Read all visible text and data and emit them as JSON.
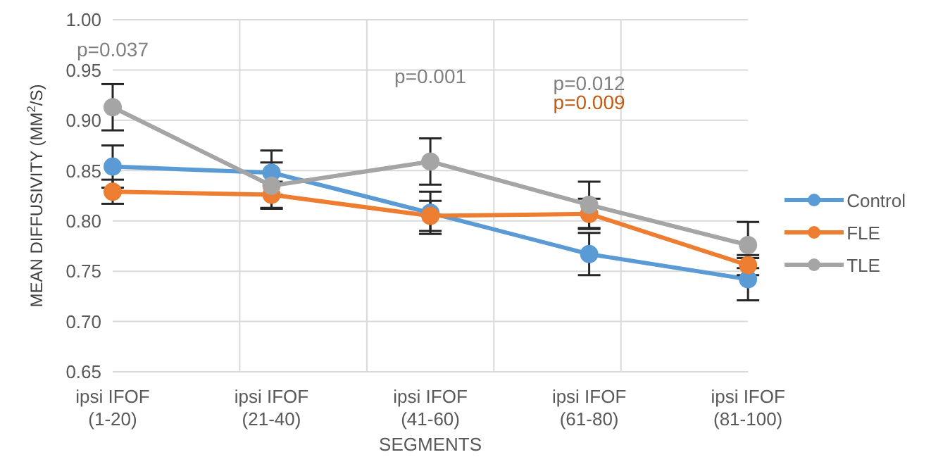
{
  "chart_data": {
    "type": "line",
    "xlabel": "SEGMENTS",
    "ylabel": "MEAN DIFFUSIVITY (MM$^{2}$/S)",
    "categories": [
      "ipsi IFOF (1-20)",
      "ipsi IFOF (21-40)",
      "ipsi IFOF (41-60)",
      "ipsi IFOF (61-80)",
      "ipsi IFOF (81-100)"
    ],
    "series": [
      {
        "name": "Control",
        "color": "#5b9bd5",
        "values": [
          0.854,
          0.848,
          0.808,
          0.767,
          0.742
        ],
        "errors": [
          0.021,
          0.022,
          0.021,
          0.021,
          0.021
        ]
      },
      {
        "name": "FLE",
        "color": "#ed7d31",
        "values": [
          0.829,
          0.826,
          0.805,
          0.807,
          0.756
        ],
        "errors": [
          0.012,
          0.013,
          0.015,
          0.015,
          0.01
        ]
      },
      {
        "name": "TLE",
        "color": "#a5a5a5",
        "values": [
          0.913,
          0.835,
          0.859,
          0.816,
          0.776
        ],
        "errors": [
          0.023,
          0.023,
          0.023,
          0.023,
          0.023
        ]
      }
    ],
    "ylim": [
      0.65,
      1.0
    ],
    "yticks": [
      {
        "value": 0.65,
        "label": "0.65"
      },
      {
        "value": 0.7,
        "label": "0.70"
      },
      {
        "value": 0.75,
        "label": "0.75"
      },
      {
        "value": 0.8,
        "label": "0.80"
      },
      {
        "value": 0.85,
        "label": "0.85"
      },
      {
        "value": 0.9,
        "label": "0.90"
      },
      {
        "value": 0.95,
        "label": "0.95"
      },
      {
        "value": 1.0,
        "label": "1.00"
      }
    ],
    "grid": true,
    "legend": "right",
    "marker": "circle",
    "line_style": "solid",
    "annotations": [
      "p=0.037",
      "p=0.001",
      "p=0.012",
      "p=0.009"
    ]
  }
}
